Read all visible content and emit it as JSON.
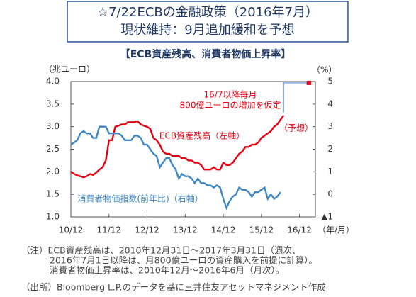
{
  "header": {
    "line1": "☆7/22ECBの金融政策（2016年7月）",
    "line2": "現状維持：9月追加緩和を予想"
  },
  "chart_data": {
    "type": "line",
    "title": "【ECB資産残高、消費者物価上昇率】",
    "y_label": "（兆ユーロ）",
    "y2_label": "（%）",
    "x_label": "（年/月）",
    "xlim": [
      "2010-12",
      "2017-05"
    ],
    "xticks": [
      {
        "value": "2010-12",
        "label": "10/12"
      },
      {
        "value": "2011-12",
        "label": "11/12"
      },
      {
        "value": "2012-12",
        "label": "12/12"
      },
      {
        "value": "2013-12",
        "label": "13/12"
      },
      {
        "value": "2014-12",
        "label": "14/12"
      },
      {
        "value": "2015-12",
        "label": "15/12"
      },
      {
        "value": "2016-12",
        "label": "16/12"
      }
    ],
    "ylim": [
      1.0,
      4.0
    ],
    "yticks": [
      {
        "value": 1.0,
        "label": "1.0"
      },
      1.5,
      {
        "value": 2.0,
        "label": "2.0"
      },
      2.5,
      {
        "value": 3.0,
        "label": "3.0"
      },
      3.5,
      {
        "value": 4.0,
        "label": "4.0"
      }
    ],
    "y2lim": [
      -1,
      5
    ],
    "y2ticks": [
      {
        "value": -1,
        "label": "▲1"
      },
      0,
      1,
      2,
      3,
      4,
      5
    ],
    "series": [
      {
        "name": "ECB資産残高（左軸）",
        "color": "#e60012",
        "x": [
          "2010-12",
          "2011-01",
          "2011-02",
          "2011-03",
          "2011-04",
          "2011-05",
          "2011-06",
          "2011-07",
          "2011-08",
          "2011-09",
          "2011-10",
          "2011-11",
          "2011-12",
          "2012-01",
          "2012-02",
          "2012-03",
          "2012-04",
          "2012-05",
          "2012-06",
          "2012-07",
          "2012-08",
          "2012-09",
          "2012-10",
          "2012-11",
          "2012-12",
          "2013-01",
          "2013-02",
          "2013-03",
          "2013-04",
          "2013-05",
          "2013-06",
          "2013-07",
          "2013-08",
          "2013-09",
          "2013-10",
          "2013-11",
          "2013-12",
          "2014-01",
          "2014-02",
          "2014-03",
          "2014-04",
          "2014-05",
          "2014-06",
          "2014-07",
          "2014-08",
          "2014-09",
          "2014-10",
          "2014-11",
          "2014-12",
          "2015-01",
          "2015-02",
          "2015-03",
          "2015-04",
          "2015-05",
          "2015-06",
          "2015-07",
          "2015-08",
          "2015-09",
          "2015-10",
          "2015-11",
          "2015-12",
          "2016-01",
          "2016-02",
          "2016-03",
          "2016-04",
          "2016-05",
          "2016-06",
          "2016-07"
        ],
        "values": [
          2.0,
          1.95,
          1.92,
          1.9,
          1.88,
          1.9,
          1.95,
          1.93,
          1.98,
          2.05,
          2.1,
          2.25,
          2.7,
          2.7,
          3.0,
          3.02,
          3.05,
          3.05,
          3.1,
          3.1,
          3.1,
          3.12,
          3.05,
          3.02,
          3.0,
          2.95,
          2.75,
          2.7,
          2.6,
          2.45,
          2.4,
          2.4,
          2.35,
          2.35,
          2.35,
          2.3,
          2.3,
          2.25,
          2.25,
          2.2,
          2.2,
          2.15,
          2.05,
          2.05,
          2.05,
          2.1,
          2.05,
          2.05,
          2.2,
          2.15,
          2.15,
          2.2,
          2.3,
          2.4,
          2.45,
          2.55,
          2.55,
          2.6,
          2.6,
          2.65,
          2.75,
          2.8,
          2.85,
          2.9,
          3.0,
          3.05,
          3.15,
          3.25
        ]
      },
      {
        "name": "消費者物価指数(前年比)（右軸）",
        "color": "#3f88c5",
        "axis": "y2",
        "x": [
          "2010-12",
          "2011-01",
          "2011-02",
          "2011-03",
          "2011-04",
          "2011-05",
          "2011-06",
          "2011-07",
          "2011-08",
          "2011-09",
          "2011-10",
          "2011-11",
          "2011-12",
          "2012-01",
          "2012-02",
          "2012-03",
          "2012-04",
          "2012-05",
          "2012-06",
          "2012-07",
          "2012-08",
          "2012-09",
          "2012-10",
          "2012-11",
          "2012-12",
          "2013-01",
          "2013-02",
          "2013-03",
          "2013-04",
          "2013-05",
          "2013-06",
          "2013-07",
          "2013-08",
          "2013-09",
          "2013-10",
          "2013-11",
          "2013-12",
          "2014-01",
          "2014-02",
          "2014-03",
          "2014-04",
          "2014-05",
          "2014-06",
          "2014-07",
          "2014-08",
          "2014-09",
          "2014-10",
          "2014-11",
          "2014-12",
          "2015-01",
          "2015-02",
          "2015-03",
          "2015-04",
          "2015-05",
          "2015-06",
          "2015-07",
          "2015-08",
          "2015-09",
          "2015-10",
          "2015-11",
          "2015-12",
          "2016-01",
          "2016-02",
          "2016-03",
          "2016-04",
          "2016-05",
          "2016-06"
        ],
        "values": [
          2.2,
          2.3,
          2.4,
          2.7,
          2.8,
          2.7,
          2.7,
          2.5,
          2.5,
          3.0,
          3.0,
          3.0,
          2.7,
          2.7,
          2.7,
          2.7,
          2.6,
          2.4,
          2.4,
          2.4,
          2.6,
          2.6,
          2.5,
          2.2,
          2.2,
          2.0,
          1.8,
          1.7,
          1.2,
          1.4,
          1.6,
          1.6,
          1.3,
          1.1,
          0.7,
          0.9,
          0.8,
          0.8,
          0.7,
          0.5,
          0.7,
          0.5,
          0.5,
          0.4,
          0.4,
          0.3,
          0.4,
          0.3,
          -0.2,
          -0.6,
          -0.3,
          -0.1,
          0.0,
          0.3,
          0.2,
          0.2,
          0.1,
          -0.1,
          0.1,
          0.1,
          0.2,
          0.3,
          -0.2,
          0.0,
          -0.2,
          -0.1,
          0.1
        ]
      }
    ],
    "forecast": {
      "name": "（予想）",
      "color": "#5b9bd5",
      "marker_color": "#e60012",
      "x": [
        "2016-07",
        "2017-03"
      ],
      "values": [
        3.25,
        3.97
      ]
    },
    "annotations": [
      "16/7以降毎月",
      "800億ユーロの増加を仮定"
    ]
  },
  "notes": [
    "（注）ECB資産残高は、2010年12月31日～2017年3月31日（週次、",
    "2016年7月1日以降は、月800億ユーロの資産購入を前提に計算）。",
    "消費者物価上昇率は、2010年12月～2016年6月（月次）。",
    "（出所）Bloomberg L.P.のデータを基に三井住友アセットマネジメント作成"
  ]
}
